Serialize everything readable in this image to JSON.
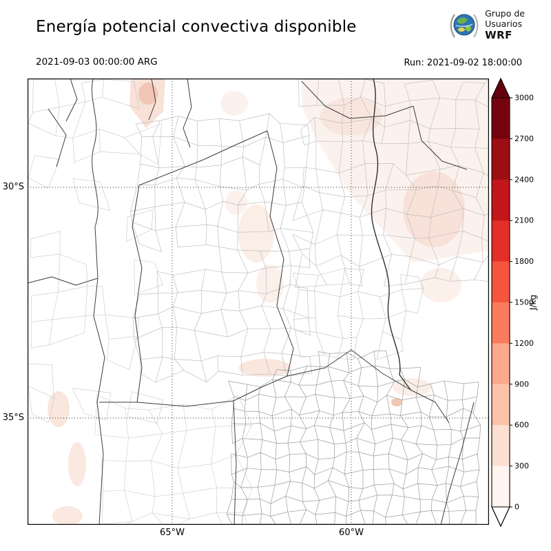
{
  "header": {
    "title": "Energía potencial convectiva disponible",
    "valid_time": "2021-09-03 00:00:00 ARG",
    "run": "Run: 2021-09-02 18:00:00",
    "logo": {
      "line1": "Grupo de",
      "line2": "Usuarios",
      "wrf": "WRF"
    }
  },
  "map": {
    "lat_labels": [
      {
        "text": "30°S"
      },
      {
        "text": "35°S"
      }
    ],
    "lon_labels": [
      {
        "text": "65°W"
      },
      {
        "text": "60°W"
      }
    ]
  },
  "colorbar": {
    "unit": "J/kg",
    "ticks_top_to_bottom": [
      3000,
      2700,
      2400,
      2100,
      1800,
      1500,
      1200,
      900,
      600,
      300,
      0
    ],
    "segments_top_to_bottom": [
      "#75030f",
      "#9d0d14",
      "#c2161b",
      "#e32f27",
      "#f5553d",
      "#fb7c5c",
      "#fca98c",
      "#fcc3aa",
      "#fee0d3",
      "#fff5f0"
    ],
    "over_color": "#67000d",
    "under_color": "#ffffff"
  },
  "chart_data": {
    "type": "heatmap",
    "title": "Energía potencial convectiva disponible",
    "variable_units": "J/kg",
    "colormap": "Reds",
    "levels": [
      0,
      300,
      600,
      900,
      1200,
      1500,
      1800,
      2100,
      2400,
      2700,
      3000
    ],
    "gridlines": {
      "lat": [
        "30°S",
        "35°S"
      ],
      "lon": [
        "65°W",
        "60°W"
      ]
    },
    "valid_time": "2021-09-03 00:00:00 ARG",
    "run": "Run: 2021-09-02 18:00:00",
    "observed_field_summary": "CAPE near 0 over most of the mapped region; faint values below 300 J/kg over the northeast and small scattered patches"
  }
}
